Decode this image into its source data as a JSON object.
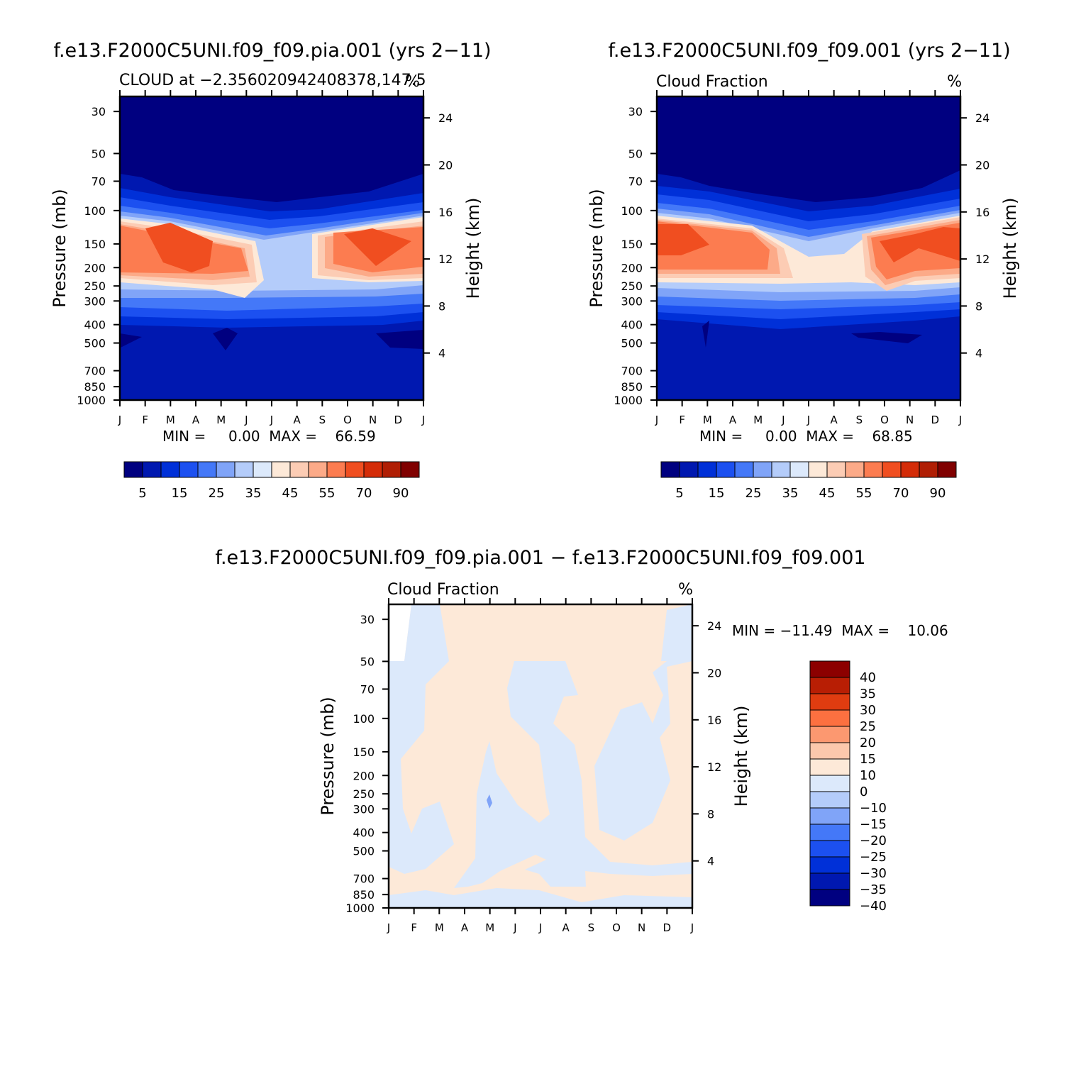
{
  "panels": [
    {
      "title": "f.e13.F2000C5UNI.f09_f09.pia.001 (yrs 2−11)",
      "left_label": "CLOUD at −2.356020942408378,147.5",
      "unit": "%",
      "stats": "MIN =     0.00  MAX =    66.59",
      "ylabel_left": "Pressure (mb)",
      "ylabel_right": "Height (km)"
    },
    {
      "title": "f.e13.F2000C5UNI.f09_f09.001 (yrs 2−11)",
      "left_label": "Cloud Fraction",
      "unit": "%",
      "stats": "MIN =     0.00  MAX =    68.85",
      "ylabel_left": "Pressure (mb)",
      "ylabel_right": "Height (km)"
    },
    {
      "title": "f.e13.F2000C5UNI.f09_f09.pia.001 − f.e13.F2000C5UNI.f09_f09.001",
      "left_label": "Cloud Fraction",
      "unit": "%",
      "stats": "MIN = −11.49  MAX =    10.06",
      "ylabel_left": "Pressure (mb)",
      "ylabel_right": "Height (km)"
    }
  ],
  "chart_data": [
    {
      "type": "heatmap",
      "name": "f.e13.F2000C5UNI.f09_f09.pia.001 (yrs 2−11)",
      "x": [
        "J",
        "F",
        "M",
        "A",
        "M",
        "J",
        "J",
        "A",
        "S",
        "O",
        "N",
        "D",
        "J"
      ],
      "y_pressure_mb": [
        30,
        50,
        70,
        100,
        150,
        200,
        250,
        300,
        400,
        500,
        700,
        850,
        1000
      ],
      "y_height_km": [
        4,
        8,
        12,
        16,
        20,
        24
      ],
      "ylim_pressure_mb": [
        1000,
        25
      ],
      "value_range": [
        0.0,
        66.59
      ],
      "colorbar_labels": [
        "5",
        "15",
        "25",
        "35",
        "45",
        "55",
        "70",
        "90"
      ],
      "colors": [
        "#000080",
        "#0018b0",
        "#0030d8",
        "#1c50f0",
        "#4478f8",
        "#80a4f8",
        "#b4ccfa",
        "#dce9fb",
        "#fde9d8",
        "#fcccb4",
        "#fcaa88",
        "#fc7c50",
        "#f04e20",
        "#d42c08",
        "#b01e04",
        "#800000"
      ]
    },
    {
      "type": "heatmap",
      "name": "f.e13.F2000C5UNI.f09_f09.001 (yrs 2−11)",
      "x": [
        "J",
        "F",
        "M",
        "A",
        "M",
        "J",
        "J",
        "A",
        "S",
        "O",
        "N",
        "D",
        "J"
      ],
      "y_pressure_mb": [
        30,
        50,
        70,
        100,
        150,
        200,
        250,
        300,
        400,
        500,
        700,
        850,
        1000
      ],
      "y_height_km": [
        4,
        8,
        12,
        16,
        20,
        24
      ],
      "ylim_pressure_mb": [
        1000,
        25
      ],
      "value_range": [
        0.0,
        68.85
      ],
      "colorbar_labels": [
        "5",
        "15",
        "25",
        "35",
        "45",
        "55",
        "70",
        "90"
      ],
      "colors": [
        "#000080",
        "#0018b0",
        "#0030d8",
        "#1c50f0",
        "#4478f8",
        "#80a4f8",
        "#b4ccfa",
        "#dce9fb",
        "#fde9d8",
        "#fcccb4",
        "#fcaa88",
        "#fc7c50",
        "#f04e20",
        "#d42c08",
        "#b01e04",
        "#800000"
      ]
    },
    {
      "type": "heatmap",
      "name": "f.e13.F2000C5UNI.f09_f09.pia.001 − f.e13.F2000C5UNI.f09_f09.001",
      "x": [
        "J",
        "F",
        "M",
        "A",
        "M",
        "J",
        "J",
        "A",
        "S",
        "O",
        "N",
        "D",
        "J"
      ],
      "y_pressure_mb": [
        30,
        50,
        70,
        100,
        150,
        200,
        250,
        300,
        400,
        500,
        700,
        850,
        1000
      ],
      "y_height_km": [
        4,
        8,
        12,
        16,
        20,
        24
      ],
      "ylim_pressure_mb": [
        1000,
        25
      ],
      "value_range": [
        -11.49,
        10.06
      ],
      "colorbar_labels": [
        "40",
        "35",
        "30",
        "25",
        "20",
        "15",
        "10",
        "0",
        "−10",
        "−15",
        "−20",
        "−25",
        "−30",
        "−35",
        "−40"
      ],
      "colors": [
        "#8c0000",
        "#b81e04",
        "#e03c10",
        "#fc7040",
        "#fc9870",
        "#fcc8ac",
        "#fde9d8",
        "#dce9fb",
        "#b4ccfa",
        "#80a4f8",
        "#4478f8",
        "#1c50f0",
        "#0030d8",
        "#0018b0",
        "#000080"
      ]
    }
  ]
}
